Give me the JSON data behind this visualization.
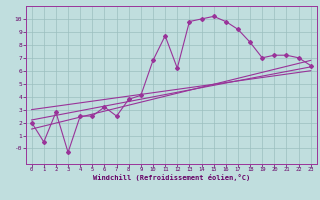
{
  "title": "",
  "xlabel": "Windchill (Refroidissement éolien,°C)",
  "ylabel": "",
  "background_color": "#c0dede",
  "line_color": "#993399",
  "grid_color": "#9bbfbf",
  "xlim": [
    -0.5,
    23.5
  ],
  "ylim": [
    -1.2,
    11
  ],
  "xticks": [
    0,
    1,
    2,
    3,
    4,
    5,
    6,
    7,
    8,
    9,
    10,
    11,
    12,
    13,
    14,
    15,
    16,
    17,
    18,
    19,
    20,
    21,
    22,
    23
  ],
  "yticks": [
    0,
    1,
    2,
    3,
    4,
    5,
    6,
    7,
    8,
    9,
    10
  ],
  "line1_x": [
    0,
    1,
    2,
    3,
    4,
    5,
    6,
    7,
    8,
    9,
    10,
    11,
    12,
    13,
    14,
    15,
    16,
    17,
    18,
    19,
    20,
    21,
    22,
    23
  ],
  "line1_y": [
    2.0,
    0.5,
    2.8,
    -0.3,
    2.5,
    2.5,
    3.2,
    2.5,
    3.8,
    4.1,
    6.8,
    8.7,
    6.2,
    9.8,
    10.0,
    10.2,
    9.8,
    9.2,
    8.2,
    7.0,
    7.2,
    7.2,
    7.0,
    6.4
  ],
  "line2_x": [
    0,
    23
  ],
  "line2_y": [
    1.5,
    6.8
  ],
  "line3_x": [
    0,
    23
  ],
  "line3_y": [
    2.2,
    6.3
  ],
  "line4_x": [
    0,
    23
  ],
  "line4_y": [
    3.0,
    6.0
  ]
}
